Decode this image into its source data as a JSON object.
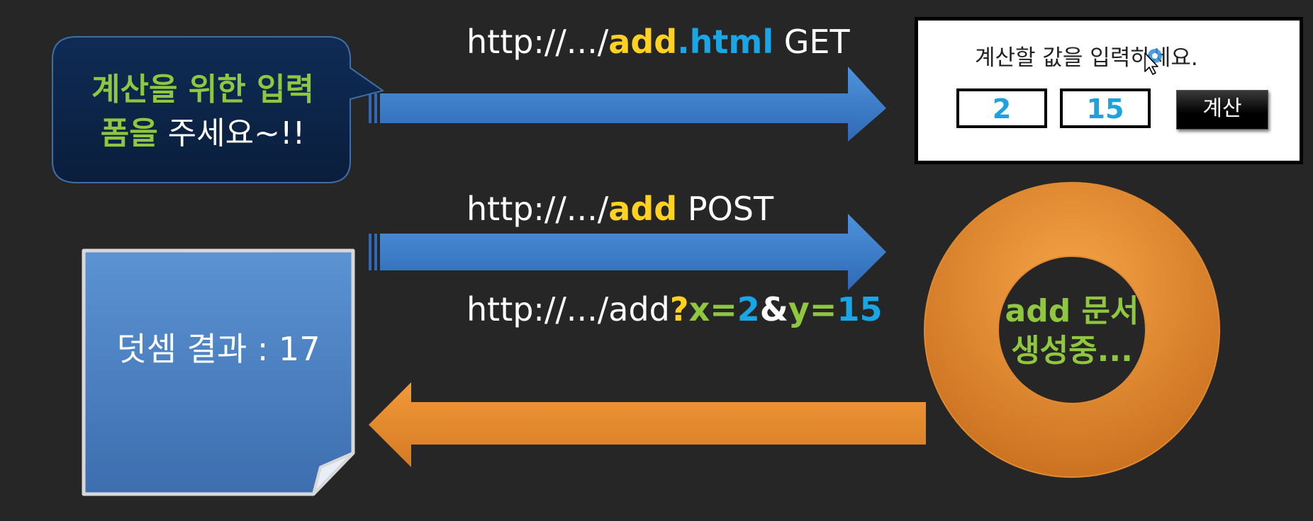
{
  "request_bubble": {
    "line1": "계산을 위한 입력",
    "line2_highlight": "폼을",
    "line2_rest": " 주세요~!!"
  },
  "get_request": {
    "prefix": "http://.../",
    "name": "add",
    "ext": ".html",
    "method": " GET"
  },
  "form": {
    "prompt": "계산할 값을 입력하세요.",
    "x_value": "2",
    "y_value": "15",
    "button_label": "계산"
  },
  "post_request": {
    "prefix": "http://.../",
    "name": "add",
    "method": " POST"
  },
  "query_url": {
    "prefix": "http://.../add",
    "q": "?",
    "x_key": "x=",
    "x_val": "2",
    "amp": "&",
    "y_key": "y=",
    "y_val": "15"
  },
  "server": {
    "line1": "add 문서",
    "line2": "생성중..."
  },
  "result": {
    "text": "덧셈 결과 : 17"
  },
  "colors": {
    "background": "#262626",
    "arrow_blue": "#3f7fcf",
    "arrow_orange": "#e88a2e",
    "green": "#8fc73e",
    "yellow": "#ffd21f",
    "cyan": "#18a6e6"
  }
}
